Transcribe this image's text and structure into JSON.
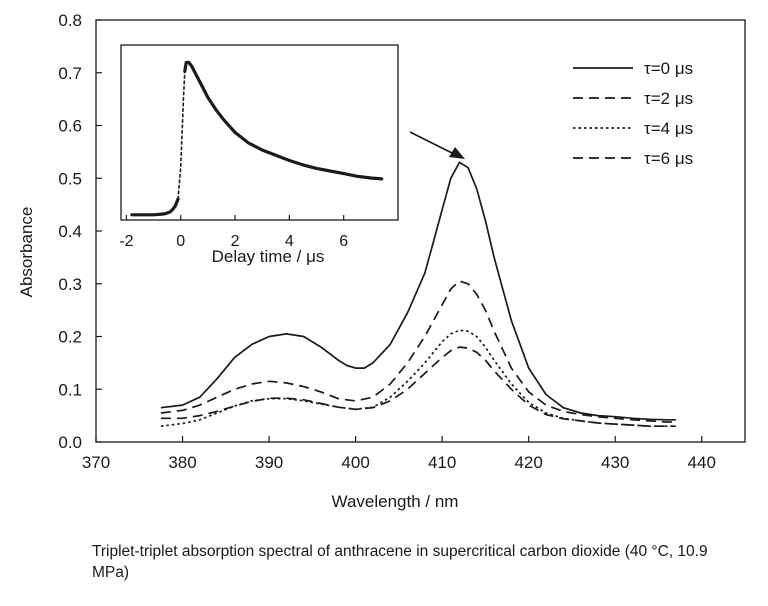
{
  "chart_data": [
    {
      "type": "line",
      "role": "main",
      "xlabel": "Wavelength / nm",
      "ylabel": "Absorbance",
      "xlim": [
        370,
        445
      ],
      "ylim": [
        0,
        0.8
      ],
      "xticks": [
        370,
        380,
        390,
        400,
        410,
        420,
        430,
        440
      ],
      "yticks": [
        0.0,
        0.1,
        0.2,
        0.3,
        0.4,
        0.5,
        0.6,
        0.7,
        0.8
      ],
      "xtick_labels": [
        "370",
        "380",
        "390",
        "400",
        "410",
        "420",
        "430",
        "440"
      ],
      "ytick_labels": [
        "0.0",
        "0.1",
        "0.2",
        "0.3",
        "0.4",
        "0.5",
        "0.6",
        "0.7",
        "0.8"
      ],
      "grid": false,
      "legend": "top-right",
      "series": [
        {
          "name": "τ=0 μs",
          "style": "solid",
          "x": [
            377.5,
            380,
            382,
            384,
            386,
            388,
            390,
            392,
            394,
            396,
            398,
            399,
            400,
            401,
            402,
            404,
            406,
            408,
            409,
            410,
            411,
            412,
            413,
            414,
            415,
            416,
            418,
            420,
            422,
            424,
            426,
            428,
            430,
            432,
            434,
            436,
            437
          ],
          "y": [
            0.065,
            0.07,
            0.085,
            0.12,
            0.16,
            0.185,
            0.2,
            0.205,
            0.2,
            0.18,
            0.155,
            0.145,
            0.14,
            0.14,
            0.15,
            0.185,
            0.245,
            0.32,
            0.38,
            0.44,
            0.5,
            0.53,
            0.52,
            0.48,
            0.42,
            0.35,
            0.23,
            0.14,
            0.09,
            0.065,
            0.055,
            0.05,
            0.048,
            0.045,
            0.043,
            0.042,
            0.042
          ]
        },
        {
          "name": "τ=2 μs",
          "style": "dashed",
          "x": [
            377.5,
            380,
            382,
            384,
            386,
            388,
            390,
            392,
            394,
            396,
            398,
            400,
            402,
            404,
            406,
            408,
            410,
            411,
            412,
            413,
            414,
            415,
            416,
            418,
            420,
            422,
            424,
            426,
            428,
            430,
            432,
            434,
            436,
            437
          ],
          "y": [
            0.055,
            0.06,
            0.07,
            0.085,
            0.1,
            0.11,
            0.115,
            0.112,
            0.105,
            0.095,
            0.082,
            0.078,
            0.085,
            0.11,
            0.15,
            0.2,
            0.26,
            0.29,
            0.305,
            0.3,
            0.28,
            0.25,
            0.21,
            0.14,
            0.095,
            0.07,
            0.058,
            0.052,
            0.048,
            0.045,
            0.042,
            0.04,
            0.038,
            0.038
          ]
        },
        {
          "name": "τ=4 μs",
          "style": "dotted",
          "x": [
            377.5,
            380,
            382,
            384,
            386,
            388,
            390,
            392,
            394,
            396,
            398,
            400,
            402,
            404,
            406,
            408,
            410,
            411,
            412,
            413,
            414,
            415,
            416,
            418,
            420,
            422,
            424,
            426,
            428,
            430,
            432,
            434,
            436,
            437
          ],
          "y": [
            0.03,
            0.035,
            0.042,
            0.055,
            0.068,
            0.078,
            0.082,
            0.082,
            0.078,
            0.072,
            0.066,
            0.062,
            0.066,
            0.085,
            0.115,
            0.15,
            0.19,
            0.205,
            0.212,
            0.21,
            0.2,
            0.18,
            0.155,
            0.11,
            0.075,
            0.055,
            0.045,
            0.04,
            0.036,
            0.034,
            0.032,
            0.03,
            0.03,
            0.03
          ]
        },
        {
          "name": "τ=6 μs",
          "style": "dashed",
          "x": [
            377.5,
            380,
            382,
            384,
            386,
            388,
            390,
            392,
            394,
            396,
            398,
            400,
            402,
            404,
            406,
            408,
            410,
            411,
            412,
            413,
            414,
            415,
            416,
            418,
            420,
            422,
            424,
            426,
            428,
            430,
            432,
            434,
            436,
            437
          ],
          "y": [
            0.045,
            0.045,
            0.05,
            0.058,
            0.068,
            0.077,
            0.083,
            0.083,
            0.08,
            0.073,
            0.066,
            0.062,
            0.065,
            0.078,
            0.1,
            0.13,
            0.16,
            0.173,
            0.18,
            0.178,
            0.17,
            0.155,
            0.135,
            0.1,
            0.07,
            0.052,
            0.044,
            0.04,
            0.036,
            0.034,
            0.032,
            0.03,
            0.03,
            0.03
          ]
        }
      ]
    },
    {
      "type": "line",
      "role": "inset",
      "xlabel": "Delay time / μs",
      "ylabel": "",
      "xlim": [
        -2.2,
        8
      ],
      "ylim": [
        0,
        1
      ],
      "xticks": [
        -2,
        0,
        2,
        4,
        6
      ],
      "xtick_labels": [
        "-2",
        "0",
        "2",
        "4",
        "6"
      ],
      "grid": false,
      "series": [
        {
          "name": "",
          "style": "solid",
          "x": [
            -1.8,
            -1.6,
            -1.4,
            -1.2,
            -1.0,
            -0.8,
            -0.6,
            -0.4,
            -0.3,
            -0.2,
            -0.1
          ],
          "y": [
            0.03,
            0.03,
            0.03,
            0.03,
            0.03,
            0.032,
            0.035,
            0.045,
            0.06,
            0.08,
            0.12
          ]
        },
        {
          "name": "",
          "style": "dotted",
          "x": [
            -0.1,
            0.0,
            0.05,
            0.1,
            0.15
          ],
          "y": [
            0.12,
            0.3,
            0.5,
            0.7,
            0.85
          ]
        },
        {
          "name": "",
          "style": "solid",
          "x": [
            0.15,
            0.2,
            0.3,
            0.4,
            0.6,
            0.8,
            1.0,
            1.3,
            1.6,
            2.0,
            2.5,
            3.0,
            3.5,
            4.0,
            4.5,
            5.0,
            5.5,
            6.0,
            6.5,
            7.0,
            7.4
          ],
          "y": [
            0.85,
            0.9,
            0.9,
            0.88,
            0.82,
            0.76,
            0.7,
            0.63,
            0.57,
            0.5,
            0.44,
            0.4,
            0.37,
            0.34,
            0.315,
            0.295,
            0.28,
            0.265,
            0.25,
            0.24,
            0.235
          ]
        }
      ]
    }
  ],
  "caption": "Triplet-triplet absorption spectral of anthracene in supercritical carbon dioxide (40 °C, 10.9 MPa)"
}
